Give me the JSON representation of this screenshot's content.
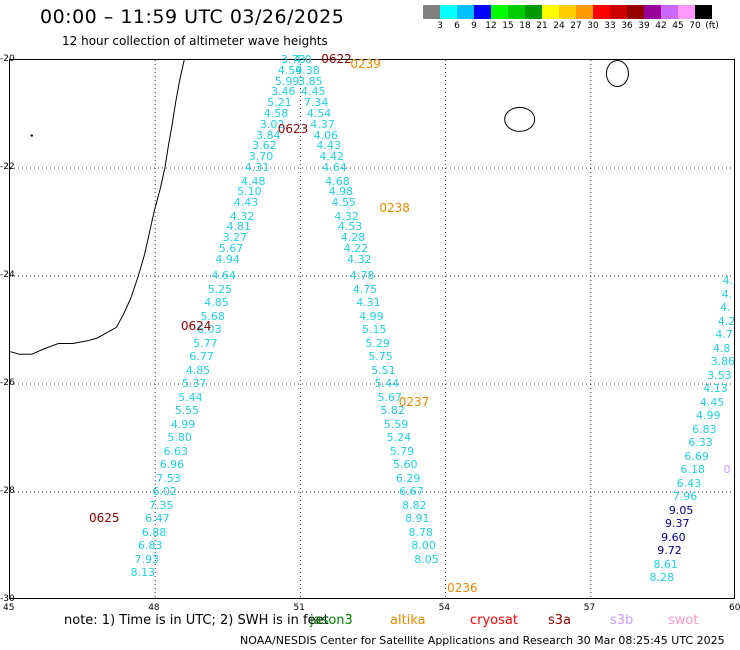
{
  "title": "00:00 – 11:59 UTC 03/26/2025",
  "subtitle": "12 hour collection of altimeter wave heights",
  "colorbar": {
    "unit": "(ft)",
    "colors": [
      "#808080",
      "#00ffff",
      "#00bfff",
      "#0000ff",
      "#00ff00",
      "#00cc00",
      "#009900",
      "#ffff00",
      "#ffcc00",
      "#ff9900",
      "#ff0000",
      "#cc0000",
      "#990000",
      "#990099",
      "#cc66ff",
      "#ff99ff",
      "#000000"
    ],
    "labels": [
      "3",
      "6",
      "9",
      "12",
      "15",
      "18",
      "21",
      "24",
      "27",
      "30",
      "33",
      "36",
      "39",
      "42",
      "45",
      "70"
    ]
  },
  "map": {
    "lon_min": 45,
    "lon_max": 60,
    "lat_min": -30,
    "lat_max": -20,
    "x_ticks": [
      "45",
      "48",
      "51",
      "54",
      "57",
      "60"
    ],
    "y_ticks": [
      "-20",
      "-22",
      "-24",
      "-26",
      "-28",
      "-30"
    ]
  },
  "colors": {
    "cyan": "#22cfe0",
    "navy": "#00008b",
    "orange": "#e88a00",
    "maroon": "#8b0000"
  },
  "passes": [
    {
      "label": "0622",
      "lon": 51.7,
      "lat": -20.0,
      "color": "maroon"
    },
    {
      "label": "0239",
      "lon": 52.3,
      "lat": -20.1,
      "color": "orange"
    },
    {
      "label": "0623",
      "lon": 50.8,
      "lat": -21.3,
      "color": "maroon"
    },
    {
      "label": "0238",
      "lon": 52.9,
      "lat": -22.75,
      "color": "orange"
    },
    {
      "label": "0624",
      "lon": 48.8,
      "lat": -24.95,
      "color": "maroon"
    },
    {
      "label": "0237",
      "lon": 53.3,
      "lat": -26.35,
      "color": "orange"
    },
    {
      "label": "0625",
      "lon": 46.9,
      "lat": -28.5,
      "color": "maroon"
    },
    {
      "label": "0236",
      "lon": 54.3,
      "lat": -29.8,
      "color": "orange"
    }
  ],
  "tracks": [
    {
      "color": "cyan",
      "points": [
        {
          "lon": 50.83,
          "lat": -20.0,
          "v": "3.73"
        },
        {
          "lon": 50.76,
          "lat": -20.2,
          "v": "4.59"
        },
        {
          "lon": 50.7,
          "lat": -20.4,
          "v": "5.99"
        },
        {
          "lon": 50.62,
          "lat": -20.6,
          "v": "3.46"
        },
        {
          "lon": 50.54,
          "lat": -20.8,
          "v": "5.21"
        },
        {
          "lon": 50.47,
          "lat": -21.0,
          "v": "4.58"
        },
        {
          "lon": 50.39,
          "lat": -21.2,
          "v": "3.02"
        },
        {
          "lon": 50.31,
          "lat": -21.4,
          "v": "3.84"
        },
        {
          "lon": 50.23,
          "lat": -21.6,
          "v": "3.62"
        },
        {
          "lon": 50.16,
          "lat": -21.8,
          "v": "3.70"
        },
        {
          "lon": 50.08,
          "lat": -22.0,
          "v": "4.31"
        },
        {
          "lon": 50.0,
          "lat": -22.25,
          "v": "4.48"
        },
        {
          "lon": 49.92,
          "lat": -22.45,
          "v": "5.10"
        },
        {
          "lon": 49.85,
          "lat": -22.65,
          "v": "4.43"
        },
        {
          "lon": 49.77,
          "lat": -22.9,
          "v": "4.32"
        },
        {
          "lon": 49.7,
          "lat": -23.1,
          "v": "4.81"
        },
        {
          "lon": 49.62,
          "lat": -23.3,
          "v": "3.27"
        },
        {
          "lon": 49.54,
          "lat": -23.5,
          "v": "5.67"
        },
        {
          "lon": 49.47,
          "lat": -23.7,
          "v": "4.94"
        },
        {
          "lon": 49.39,
          "lat": -24.0,
          "v": "4.64"
        },
        {
          "lon": 49.31,
          "lat": -24.25,
          "v": "5.25"
        },
        {
          "lon": 49.24,
          "lat": -24.5,
          "v": "4.85"
        },
        {
          "lon": 49.16,
          "lat": -24.75,
          "v": "5.68"
        },
        {
          "lon": 49.09,
          "lat": -25.0,
          "v": "6.03"
        },
        {
          "lon": 49.01,
          "lat": -25.25,
          "v": "5.77"
        },
        {
          "lon": 48.93,
          "lat": -25.5,
          "v": "6.77"
        },
        {
          "lon": 48.86,
          "lat": -25.75,
          "v": "4.85"
        },
        {
          "lon": 48.78,
          "lat": -26.0,
          "v": "5.37"
        },
        {
          "lon": 48.7,
          "lat": -26.25,
          "v": "5.44"
        },
        {
          "lon": 48.63,
          "lat": -26.5,
          "v": "5.55"
        },
        {
          "lon": 48.55,
          "lat": -26.75,
          "v": "4.99"
        },
        {
          "lon": 48.48,
          "lat": -27.0,
          "v": "5.80"
        },
        {
          "lon": 48.4,
          "lat": -27.25,
          "v": "6.63"
        },
        {
          "lon": 48.32,
          "lat": -27.5,
          "v": "6.96"
        },
        {
          "lon": 48.25,
          "lat": -27.75,
          "v": "7.53"
        },
        {
          "lon": 48.17,
          "lat": -28.0,
          "v": "6.02"
        },
        {
          "lon": 48.1,
          "lat": -28.25,
          "v": "7.35"
        },
        {
          "lon": 48.02,
          "lat": -28.5,
          "v": "6.47"
        },
        {
          "lon": 47.95,
          "lat": -28.75,
          "v": "6.88"
        },
        {
          "lon": 47.87,
          "lat": -29.0,
          "v": "6.83"
        },
        {
          "lon": 47.8,
          "lat": -29.25,
          "v": "7.93"
        },
        {
          "lon": 47.72,
          "lat": -29.5,
          "v": "8.13"
        }
      ]
    },
    {
      "color": "cyan",
      "points": [
        {
          "lon": 51.1,
          "lat": -20.0,
          "v": "4.0"
        },
        {
          "lon": 51.12,
          "lat": -20.2,
          "v": "4.38"
        },
        {
          "lon": 51.18,
          "lat": -20.4,
          "v": "3.85"
        },
        {
          "lon": 51.24,
          "lat": -20.6,
          "v": "4.45"
        },
        {
          "lon": 51.3,
          "lat": -20.8,
          "v": "7.34"
        },
        {
          "lon": 51.36,
          "lat": -21.0,
          "v": "4.54"
        },
        {
          "lon": 51.43,
          "lat": -21.2,
          "v": "4.37"
        },
        {
          "lon": 51.5,
          "lat": -21.4,
          "v": "4.06"
        },
        {
          "lon": 51.56,
          "lat": -21.6,
          "v": "4.43"
        },
        {
          "lon": 51.62,
          "lat": -21.8,
          "v": "4.42"
        },
        {
          "lon": 51.68,
          "lat": -22.0,
          "v": "4.64"
        },
        {
          "lon": 51.74,
          "lat": -22.25,
          "v": "4.68"
        },
        {
          "lon": 51.81,
          "lat": -22.45,
          "v": "4.98"
        },
        {
          "lon": 51.87,
          "lat": -22.65,
          "v": "4.55"
        },
        {
          "lon": 51.93,
          "lat": -22.9,
          "v": "4.32"
        },
        {
          "lon": 52.0,
          "lat": -23.1,
          "v": "4.53"
        },
        {
          "lon": 52.06,
          "lat": -23.3,
          "v": "4.28"
        },
        {
          "lon": 52.12,
          "lat": -23.5,
          "v": "4.22"
        },
        {
          "lon": 52.19,
          "lat": -23.7,
          "v": "4.32"
        },
        {
          "lon": 52.25,
          "lat": -24.0,
          "v": "4.78"
        },
        {
          "lon": 52.31,
          "lat": -24.25,
          "v": "4.75"
        },
        {
          "lon": 52.38,
          "lat": -24.5,
          "v": "4.31"
        },
        {
          "lon": 52.44,
          "lat": -24.75,
          "v": "4.99"
        },
        {
          "lon": 52.5,
          "lat": -25.0,
          "v": "5.15"
        },
        {
          "lon": 52.57,
          "lat": -25.25,
          "v": "5.29"
        },
        {
          "lon": 52.63,
          "lat": -25.5,
          "v": "5.75"
        },
        {
          "lon": 52.69,
          "lat": -25.75,
          "v": "5.51"
        },
        {
          "lon": 52.76,
          "lat": -26.0,
          "v": "5.44"
        },
        {
          "lon": 52.82,
          "lat": -26.25,
          "v": "5.67"
        },
        {
          "lon": 52.88,
          "lat": -26.5,
          "v": "5.82"
        },
        {
          "lon": 52.95,
          "lat": -26.75,
          "v": "5.59"
        },
        {
          "lon": 53.01,
          "lat": -27.0,
          "v": "5.24"
        },
        {
          "lon": 53.07,
          "lat": -27.25,
          "v": "5.79"
        },
        {
          "lon": 53.14,
          "lat": -27.5,
          "v": "5.60"
        },
        {
          "lon": 53.2,
          "lat": -27.75,
          "v": "6.29"
        },
        {
          "lon": 53.27,
          "lat": -28.0,
          "v": "6.67"
        },
        {
          "lon": 53.33,
          "lat": -28.25,
          "v": "8.82"
        },
        {
          "lon": 53.39,
          "lat": -28.5,
          "v": "8.91"
        },
        {
          "lon": 53.46,
          "lat": -28.75,
          "v": "8.78"
        },
        {
          "lon": 53.52,
          "lat": -29.0,
          "v": "8.00"
        },
        {
          "lon": 53.58,
          "lat": -29.25,
          "v": "8.05"
        }
      ]
    },
    {
      "color": "cyan",
      "points": [
        {
          "lon": 59.95,
          "lat": -24.1,
          "v": "4."
        },
        {
          "lon": 59.93,
          "lat": -24.35,
          "v": "4."
        },
        {
          "lon": 59.9,
          "lat": -24.6,
          "v": "4."
        },
        {
          "lon": 59.85,
          "lat": -24.85,
          "v": "4.2"
        },
        {
          "lon": 59.8,
          "lat": -25.1,
          "v": "4.7"
        },
        {
          "lon": 59.75,
          "lat": -25.35,
          "v": "4.8"
        },
        {
          "lon": 59.7,
          "lat": -25.6,
          "v": "3.86"
        },
        {
          "lon": 59.63,
          "lat": -25.85,
          "v": "3.53"
        },
        {
          "lon": 59.55,
          "lat": -26.1,
          "v": "4.13"
        },
        {
          "lon": 59.48,
          "lat": -26.35,
          "v": "4.45"
        },
        {
          "lon": 59.4,
          "lat": -26.6,
          "v": "4.99"
        },
        {
          "lon": 59.32,
          "lat": -26.85,
          "v": "6.83"
        },
        {
          "lon": 59.24,
          "lat": -27.1,
          "v": "6.33"
        },
        {
          "lon": 59.16,
          "lat": -27.35,
          "v": "6.69"
        },
        {
          "lon": 59.08,
          "lat": -27.6,
          "v": "6.18"
        },
        {
          "lon": 59.0,
          "lat": -27.85,
          "v": "6.43"
        },
        {
          "lon": 58.92,
          "lat": -28.1,
          "v": "7.96"
        }
      ]
    },
    {
      "color": "navy",
      "points": [
        {
          "lon": 58.84,
          "lat": -28.35,
          "v": "9.05"
        },
        {
          "lon": 58.76,
          "lat": -28.6,
          "v": "9.37"
        },
        {
          "lon": 58.68,
          "lat": -28.85,
          "v": "9.60"
        },
        {
          "lon": 58.6,
          "lat": -29.1,
          "v": "9.72"
        }
      ]
    },
    {
      "color": "cyan",
      "points": [
        {
          "lon": 58.52,
          "lat": -29.35,
          "v": "8.61"
        },
        {
          "lon": 58.44,
          "lat": -29.6,
          "v": "8.28"
        }
      ]
    },
    {
      "color": "#cc99ff",
      "points": [
        {
          "lon": 59.97,
          "lat": -27.6,
          "v": "0"
        }
      ]
    }
  ],
  "note": "note:  1) Time is in UTC;  2) SWH is in feet",
  "legend": [
    {
      "label": "jason3",
      "color": "#008000"
    },
    {
      "label": "altika",
      "color": "#e88a00"
    },
    {
      "label": "cryosat",
      "color": "#ff0000"
    },
    {
      "label": "s3a",
      "color": "#8b0000"
    },
    {
      "label": "s3b",
      "color": "#cc99ff"
    },
    {
      "label": "swot",
      "color": "#ff99cc"
    }
  ],
  "footer": "NOAA/NESDIS Center for Satellite Applications and Research    30 Mar 08:25:45 UTC 2025"
}
